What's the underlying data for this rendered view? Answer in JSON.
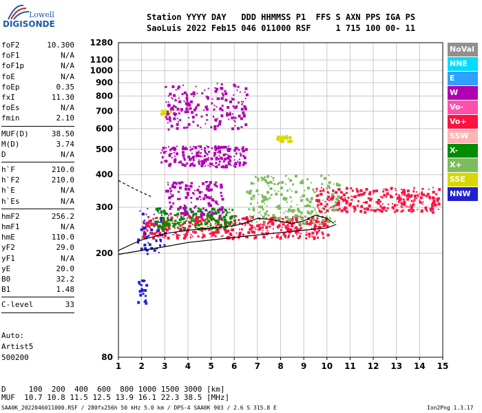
{
  "logo": {
    "line1": "Lowell",
    "line2": "DIGISONDE"
  },
  "header": {
    "line1": "Station YYYY DAY   DDD HHMMSS P1  FFS S AXN PPS IGA PS",
    "line2": "SaoLuis 2022 Feb15 046 011000 RSF     1 715 100 00- 11"
  },
  "params": [
    {
      "label": "foF2",
      "value": "10.300"
    },
    {
      "label": "foF1",
      "value": "N/A"
    },
    {
      "label": "foF1p",
      "value": "N/A"
    },
    {
      "label": "foE",
      "value": "N/A"
    },
    {
      "label": "foEp",
      "value": "0.35"
    },
    {
      "label": "fxI",
      "value": "11.30"
    },
    {
      "label": "foEs",
      "value": "N/A"
    },
    {
      "label": "fmin",
      "value": "2.10"
    },
    {
      "sep": true
    },
    {
      "label": "MUF(D)",
      "value": "38.50"
    },
    {
      "label": "M(D)",
      "value": "3.74"
    },
    {
      "label": "D",
      "value": "N/A"
    },
    {
      "sep": true
    },
    {
      "label": "h`F",
      "value": "210.0"
    },
    {
      "label": "h`F2",
      "value": "210.0"
    },
    {
      "label": "h`E",
      "value": "N/A"
    },
    {
      "label": "h`Es",
      "value": "N/A"
    },
    {
      "sep": true
    },
    {
      "label": "hmF2",
      "value": "256.2"
    },
    {
      "label": "hmF1",
      "value": "N/A"
    },
    {
      "label": "hmE",
      "value": "110.0"
    },
    {
      "label": "yF2",
      "value": "29.0"
    },
    {
      "label": "yF1",
      "value": "N/A"
    },
    {
      "label": "yE",
      "value": "20.0"
    },
    {
      "label": "B0",
      "value": "32.2"
    },
    {
      "label": "B1",
      "value": "1.48"
    },
    {
      "sep": true
    },
    {
      "label": "C-level",
      "value": "33"
    },
    {
      "sep": true
    }
  ],
  "auto": {
    "line1": "Auto:",
    "line2": "Artist5",
    "line3": "500200"
  },
  "legend": [
    {
      "label": "NoVal",
      "color": "#909090"
    },
    {
      "label": "NNE",
      "color": "#00dcff"
    },
    {
      "label": "E",
      "color": "#2fa0ff"
    },
    {
      "label": "W",
      "color": "#b000b0"
    },
    {
      "label": "Vo-",
      "color": "#ff4fa8"
    },
    {
      "label": "Vo+",
      "color": "#ff1040"
    },
    {
      "label": "SSW",
      "color": "#ffb4b4"
    },
    {
      "label": "X-",
      "color": "#008c00"
    },
    {
      "label": "X+",
      "color": "#7cbc5c"
    },
    {
      "label": "SSE",
      "color": "#d8d800"
    },
    {
      "label": "NNW",
      "color": "#2020d0"
    }
  ],
  "footer": {
    "line1": "D     100  200  400  600  800 1000 1500 3000 [km]",
    "line2": "MUF  10.7 10.8 11.5 12.5 13.9 16.1 22.3 38.5 [MHz]",
    "line3": "SAA0K_2022046011000.RSF / 280fx256h 50 kHz 5.0 km / DPS-4 SAA0K 903 / 2.6 S 315.8 E",
    "line4": "Ion2Png 1.3.17"
  },
  "chart_data": {
    "type": "scatter",
    "xlim": [
      1,
      15
    ],
    "ylim": [
      80,
      1280
    ],
    "y_scale": "log",
    "x_ticks": [
      1,
      2,
      3,
      4,
      5,
      6,
      7,
      8,
      9,
      10,
      11,
      12,
      13,
      14,
      15
    ],
    "y_ticks": [
      80,
      200,
      300,
      400,
      500,
      600,
      700,
      800,
      900,
      1000,
      1100,
      1280
    ],
    "grid": true,
    "trace_o_mode": {
      "x": [
        1.0,
        1.5,
        2.0,
        3.0,
        4.0,
        5.0,
        6.0,
        6.5,
        7.0,
        7.5,
        8.0,
        8.5,
        9.0,
        9.5,
        10.0,
        10.3
      ],
      "y": [
        205,
        215,
        225,
        238,
        245,
        250,
        255,
        262,
        272,
        270,
        265,
        260,
        266,
        280,
        272,
        260
      ]
    },
    "trace_lower": {
      "x": [
        1.0,
        2.0,
        3.0,
        4.0,
        5.0,
        6.0,
        7.0,
        8.0,
        9.0,
        10.0,
        10.4
      ],
      "y": [
        198,
        205,
        212,
        220,
        225,
        230,
        235,
        240,
        245,
        250,
        258
      ]
    },
    "trace_dashed": {
      "x": [
        1.0,
        1.5,
        2.0,
        2.4
      ],
      "y": [
        380,
        360,
        342,
        330
      ]
    },
    "echo_clusters": [
      {
        "x": [
          1.8,
          3.0
        ],
        "y": [
          200,
          300
        ],
        "color": "#2020d0"
      },
      {
        "x": [
          2.0,
          10.0
        ],
        "y": [
          230,
          280
        ],
        "color": "#ff1040"
      },
      {
        "x": [
          2.5,
          6.0
        ],
        "y": [
          250,
          300
        ],
        "color": "#008c00"
      },
      {
        "x": [
          3.0,
          5.5
        ],
        "y": [
          280,
          380
        ],
        "color": "#b000b0"
      },
      {
        "x": [
          2.8,
          6.5
        ],
        "y": [
          430,
          520
        ],
        "color": "#b000b0"
      },
      {
        "x": [
          6.5,
          10.5
        ],
        "y": [
          260,
          400
        ],
        "color": "#7cbc5c"
      },
      {
        "x": [
          9.5,
          14.8
        ],
        "y": [
          290,
          360
        ],
        "color": "#ff1040"
      },
      {
        "x": [
          7.8,
          8.4
        ],
        "y": [
          540,
          570
        ],
        "color": "#d8d800"
      },
      {
        "x": [
          2.8,
          3.2
        ],
        "y": [
          680,
          710
        ],
        "color": "#d8d800"
      },
      {
        "x": [
          1.8,
          2.2
        ],
        "y": [
          130,
          160
        ],
        "color": "#2020d0"
      },
      {
        "x": [
          3.0,
          6.5
        ],
        "y": [
          600,
          900
        ],
        "color": "#b000b0"
      }
    ]
  }
}
